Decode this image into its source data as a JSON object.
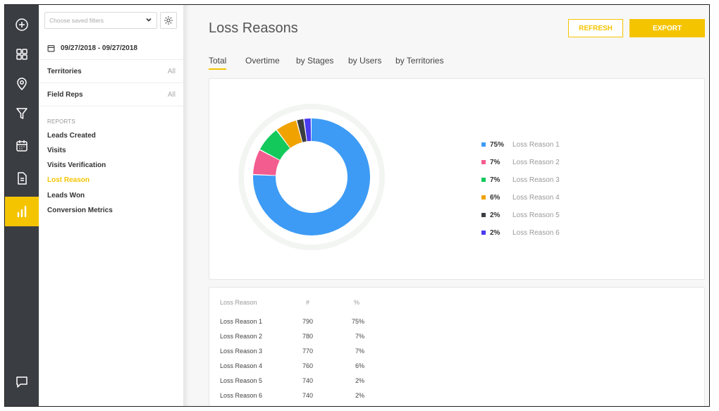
{
  "sidebar": {
    "saved_filter_placeholder": "Choose saved filters",
    "date_range": "09/27/2018 - 09/27/2018",
    "filters": [
      {
        "label": "Territories",
        "value": "All"
      },
      {
        "label": "Field Reps",
        "value": "All"
      }
    ],
    "reports_heading": "REPORTS",
    "reports": [
      {
        "label": "Leads Created",
        "active": false
      },
      {
        "label": "Visits",
        "active": false
      },
      {
        "label": "Visits Verification",
        "active": false
      },
      {
        "label": "Lost Reason",
        "active": true
      },
      {
        "label": "Leads Won",
        "active": false
      },
      {
        "label": "Conversion Metrics",
        "active": false
      }
    ]
  },
  "header": {
    "title": "Loss Reasons",
    "refresh_label": "REFRESH",
    "export_label": "EXPORT"
  },
  "tabs": [
    {
      "label": "Total",
      "active": true
    },
    {
      "label": "Overtime",
      "active": false
    },
    {
      "label": "by Stages",
      "active": false
    },
    {
      "label": "by Users",
      "active": false
    },
    {
      "label": "by Territories",
      "active": false
    }
  ],
  "colors": {
    "accent": "#f5c400",
    "rail": "#3a3d42",
    "series": [
      "#3d9bf5",
      "#f25c8f",
      "#14c95c",
      "#f0a300",
      "#3a3d42",
      "#4a3bf0"
    ]
  },
  "chart_data": {
    "type": "pie",
    "categories": [
      "Loss Reason 1",
      "Loss Reason 2",
      "Loss Reason 3",
      "Loss Reason 4",
      "Loss Reason 5",
      "Loss Reason 6"
    ],
    "values": [
      75,
      7,
      7,
      6,
      2,
      2
    ],
    "value_labels": [
      "75%",
      "7%",
      "7%",
      "6%",
      "2%",
      "2%"
    ],
    "legend": "right"
  },
  "table": {
    "headers": [
      "Loss Reason",
      "#",
      "%"
    ],
    "rows": [
      [
        "Loss Reason 1",
        "790",
        "75%"
      ],
      [
        "Loss Reason 2",
        "780",
        "7%"
      ],
      [
        "Loss Reason 3",
        "770",
        "7%"
      ],
      [
        "Loss Reason 4",
        "760",
        "6%"
      ],
      [
        "Loss Reason 5",
        "740",
        "2%"
      ],
      [
        "Loss Reason 6",
        "740",
        "2%"
      ]
    ]
  }
}
